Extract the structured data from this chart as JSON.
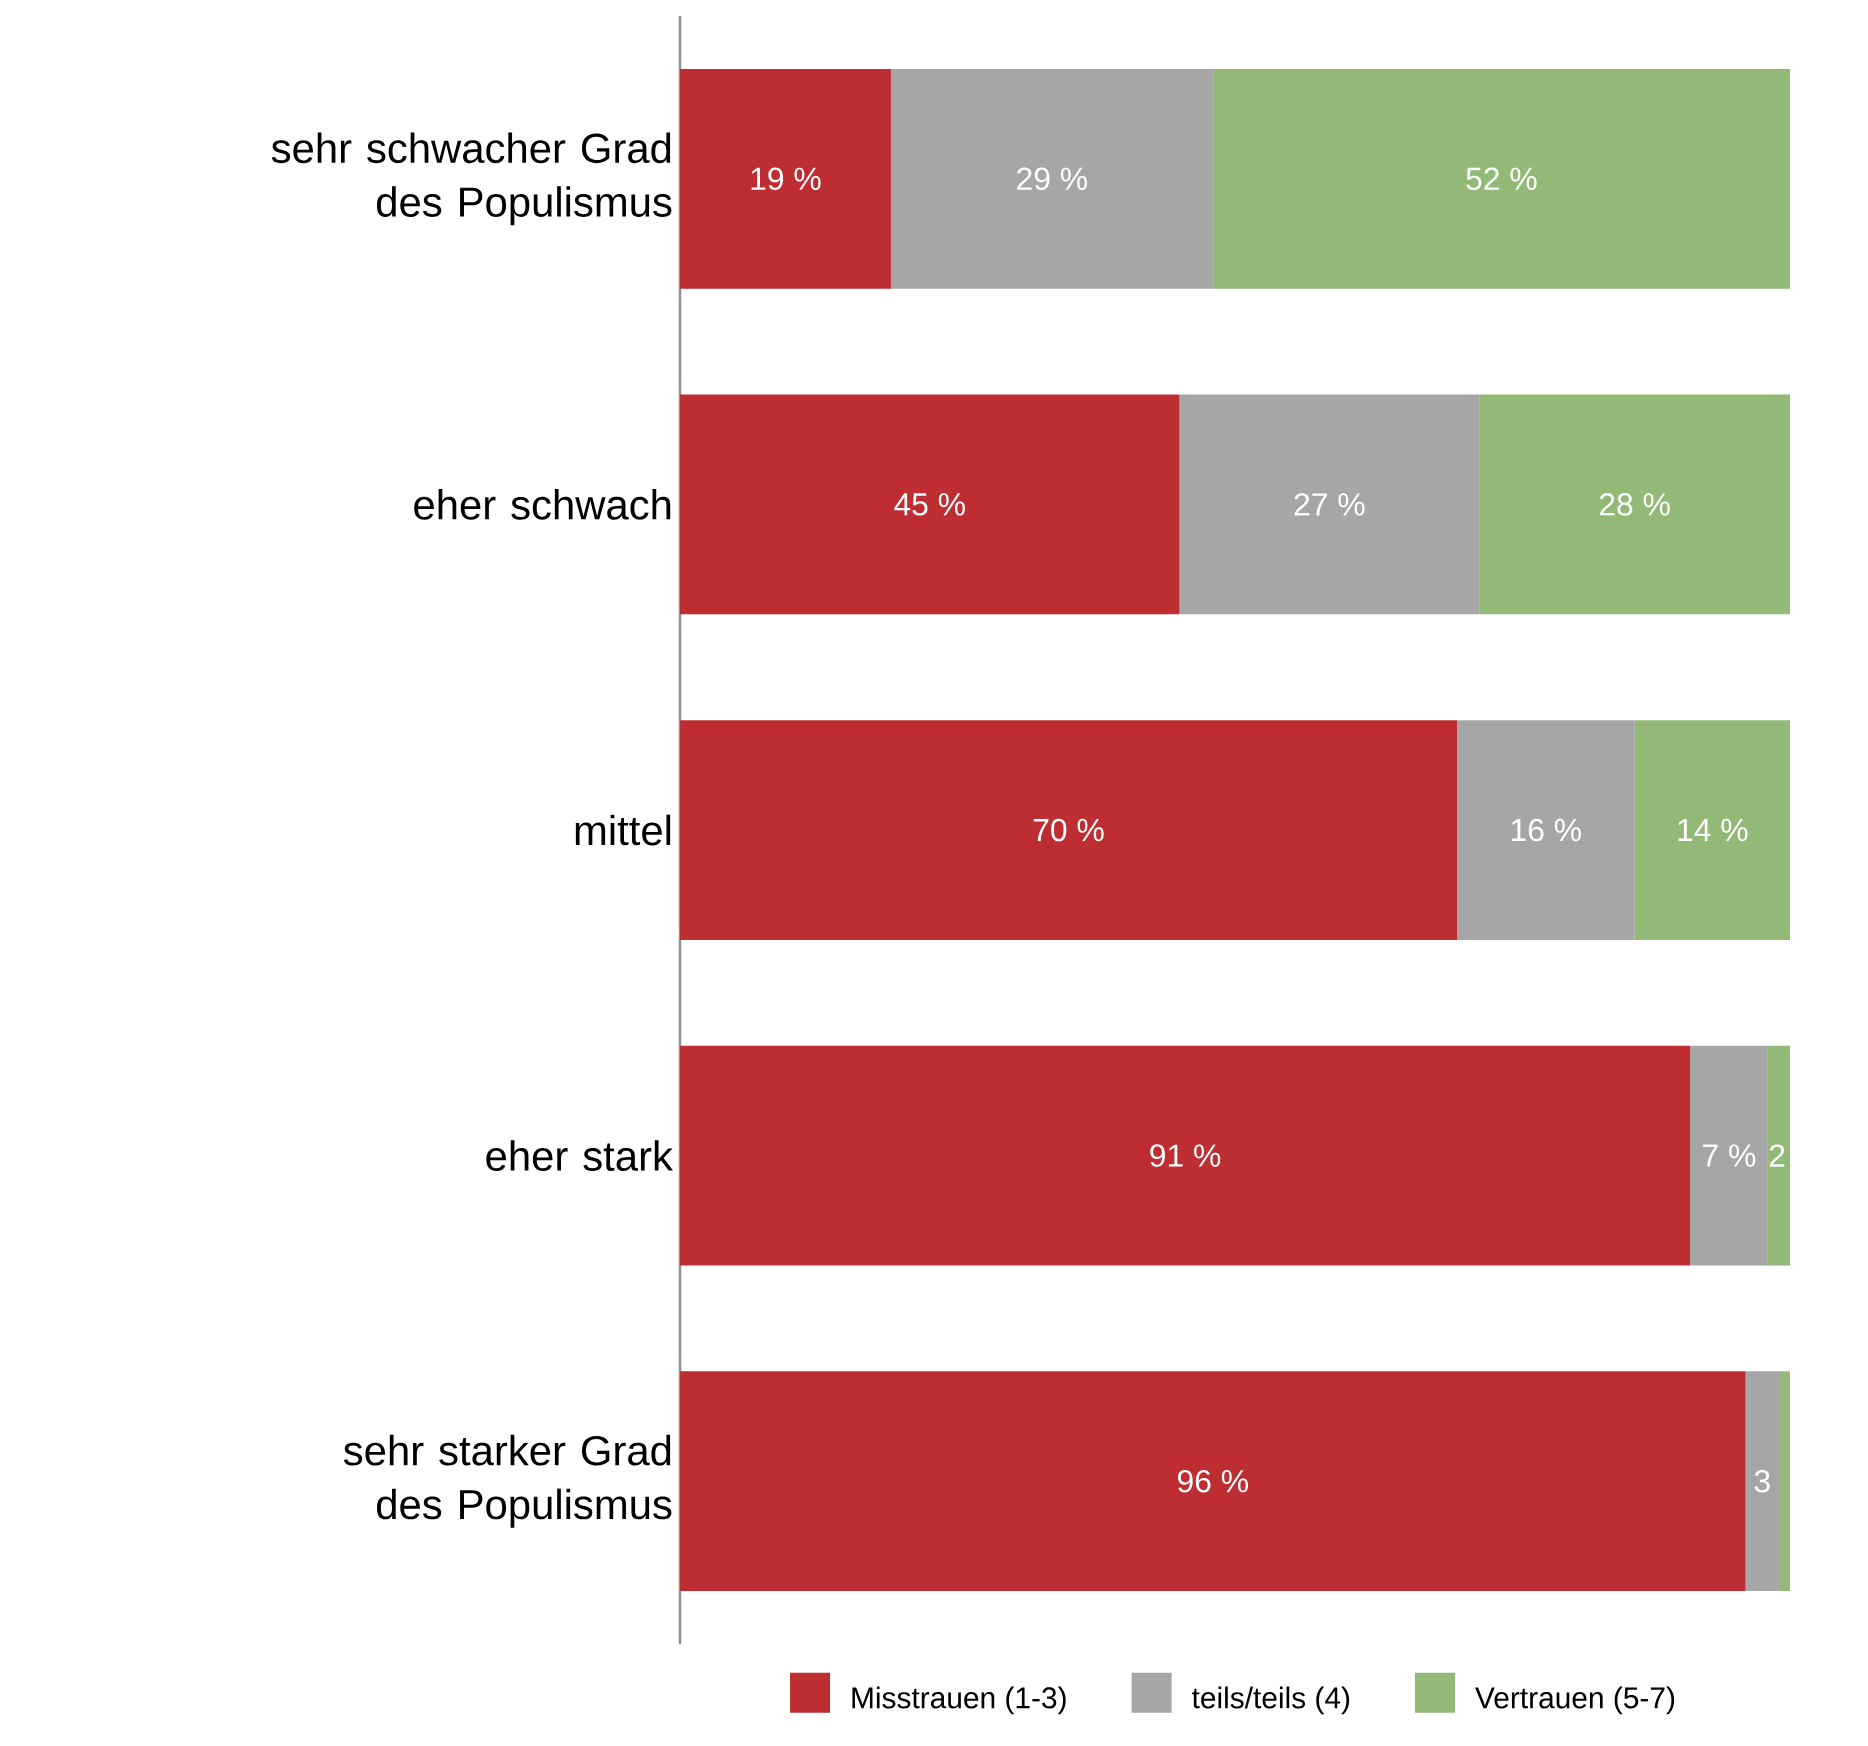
{
  "chart_data": {
    "type": "bar",
    "orientation": "horizontal",
    "stacked": true,
    "categories": [
      "sehr schwacher Grad des Populismus",
      "eher schwach",
      "mittel",
      "eher stark",
      "sehr starker Grad des Populismus"
    ],
    "xlim": [
      0,
      100
    ],
    "tick_labels": "y",
    "grid": false,
    "legend": "bottom",
    "series": [
      {
        "name": "Misstrauen (1-3)",
        "color": "#be2d31",
        "values": [
          19,
          45,
          70,
          91,
          96
        ],
        "value_labels": [
          "19 %",
          "45 %",
          "70 %",
          "91 %",
          "96 %"
        ]
      },
      {
        "name": "teils/teils (4)",
        "color": "#a6a6a6",
        "values": [
          29,
          27,
          16,
          7,
          3
        ],
        "value_labels": [
          "29 %",
          "27 %",
          "16 %",
          "7 %",
          "3"
        ]
      },
      {
        "name": "Vertrauen (5-7)",
        "color": "#93b977",
        "values": [
          52,
          28,
          14,
          2,
          1
        ],
        "value_labels": [
          "52 %",
          "28 %",
          "14 %",
          "2",
          null
        ]
      }
    ]
  }
}
